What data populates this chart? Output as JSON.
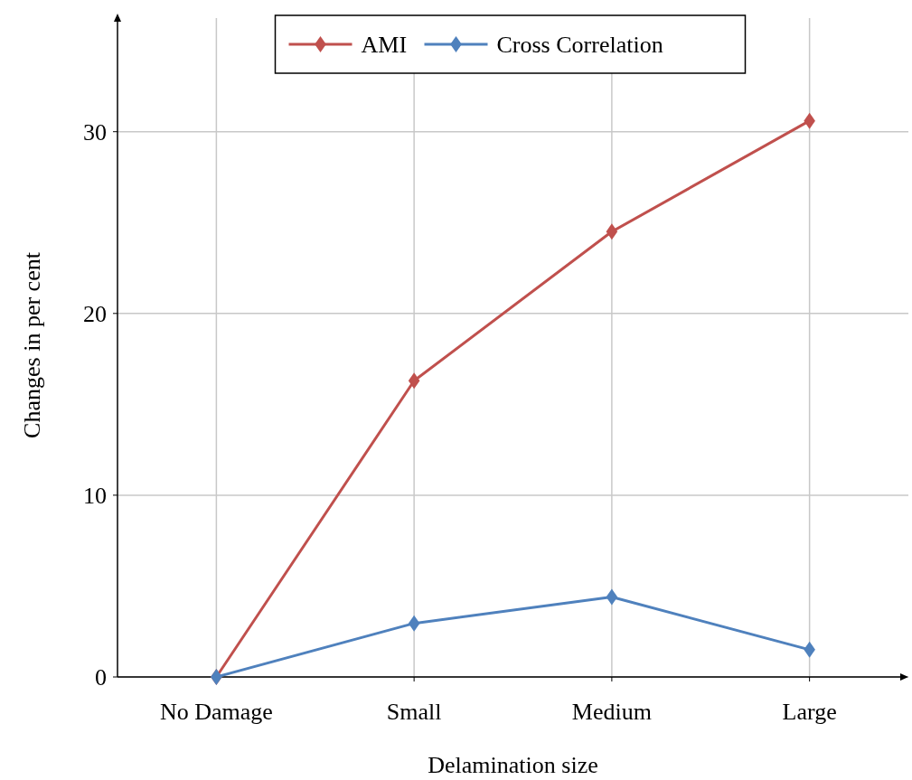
{
  "chart_data": {
    "type": "line",
    "xlabel": "Delamination size",
    "ylabel": "Changes in per cent",
    "categories": [
      "No Damage",
      "Small",
      "Medium",
      "Large"
    ],
    "series": [
      {
        "name": "AMI",
        "color": "#c0504d",
        "values": [
          0,
          16.3,
          24.5,
          30.6
        ]
      },
      {
        "name": "Cross Correlation",
        "color": "#4f81bd",
        "values": [
          0,
          2.95,
          4.4,
          1.5
        ]
      }
    ],
    "ylim": [
      0,
      36.5
    ],
    "yticks": [
      0,
      10,
      20,
      30
    ],
    "grid": true,
    "legend": "top",
    "marker": "diamond",
    "line_style": "solid"
  }
}
